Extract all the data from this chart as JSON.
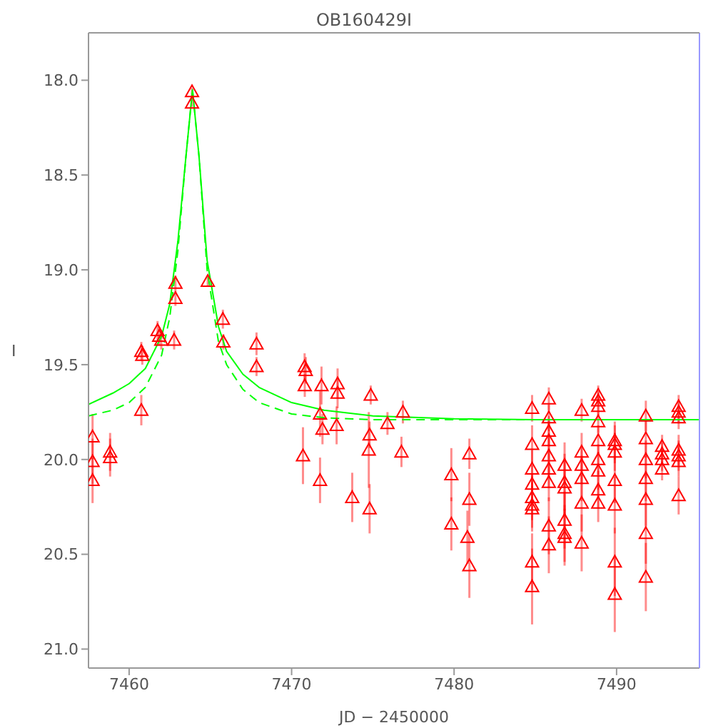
{
  "chart_data": {
    "type": "scatter",
    "title": "OB160429I",
    "xlabel": "JD − 2450000",
    "ylabel": "I",
    "xlim": [
      7457.5,
      7495.1
    ],
    "ylim": [
      21.1,
      17.75
    ],
    "xticks": [
      7460,
      7470,
      7480,
      7490
    ],
    "yticks": [
      {
        "value": 18,
        "label": "18.0"
      },
      {
        "value": 18.5,
        "label": "18.5"
      },
      {
        "value": 19,
        "label": "19.0"
      },
      {
        "value": 19.5,
        "label": "19.5"
      },
      {
        "value": 20,
        "label": "20.0"
      },
      {
        "value": 20.5,
        "label": "20.5"
      },
      {
        "value": 21,
        "label": "21.0"
      }
    ],
    "series": [
      {
        "type": "scatter",
        "color": "#ff0000",
        "marker": "triangle",
        "x": [
          7457.75,
          7457.75,
          7457.75,
          7458.83,
          7458.83,
          7460.75,
          7460.81,
          7460.75,
          7461.75,
          7461.85,
          7461.98,
          7462.77,
          7462.85,
          7462.85,
          7463.87,
          7463.87,
          7464.84,
          7465.77,
          7465.8,
          7467.84,
          7467.84,
          7470.8,
          7470.87,
          7470.81,
          7470.7,
          7471.84,
          7471.75,
          7471.9,
          7471.75,
          7472.83,
          7472.83,
          7472.77,
          7473.73,
          7474.87,
          7474.8,
          7474.75,
          7474.8,
          7475.9,
          7476.85,
          7476.76,
          7479.83,
          7479.83,
          7480.94,
          7480.94,
          7480.82,
          7480.94,
          7484.8,
          7484.8,
          7484.8,
          7484.8,
          7484.8,
          7484.8,
          7484.8,
          7484.8,
          7484.8,
          7485.83,
          7485.83,
          7485.83,
          7485.83,
          7485.83,
          7485.83,
          7485.83,
          7485.83,
          7485.83,
          7486.8,
          7486.8,
          7486.8,
          7486.8,
          7486.8,
          7486.8,
          7487.85,
          7487.85,
          7487.85,
          7487.85,
          7487.85,
          7487.85,
          7488.87,
          7488.87,
          7488.87,
          7488.87,
          7488.87,
          7488.87,
          7488.87,
          7488.87,
          7488.87,
          7489.89,
          7489.89,
          7489.89,
          7489.89,
          7489.89,
          7489.89,
          7489.89,
          7491.8,
          7491.8,
          7491.8,
          7491.8,
          7491.8,
          7491.8,
          7491.8,
          7492.8,
          7492.8,
          7492.8,
          7492.8,
          7493.82,
          7493.82,
          7493.82,
          7493.82,
          7493.82,
          7493.82,
          7493.82
        ],
        "values": [
          19.88,
          20.01,
          20.11,
          19.96,
          19.99,
          19.43,
          19.45,
          19.74,
          19.32,
          19.35,
          19.37,
          19.37,
          19.07,
          19.15,
          18.06,
          18.12,
          19.06,
          19.26,
          19.38,
          19.39,
          19.51,
          19.51,
          19.53,
          19.61,
          19.98,
          19.61,
          19.76,
          19.84,
          20.11,
          19.6,
          19.65,
          19.82,
          20.2,
          19.66,
          19.87,
          19.95,
          20.26,
          19.81,
          19.75,
          19.96,
          20.08,
          20.34,
          19.97,
          20.21,
          20.41,
          20.56,
          19.73,
          19.92,
          20.05,
          20.13,
          20.2,
          20.24,
          20.26,
          20.54,
          20.67,
          19.68,
          19.78,
          19.85,
          19.9,
          19.98,
          20.05,
          20.12,
          20.35,
          20.45,
          20.03,
          20.12,
          20.15,
          20.32,
          20.39,
          20.41,
          19.74,
          19.96,
          20.03,
          20.1,
          20.23,
          20.44,
          19.66,
          19.69,
          19.72,
          19.8,
          19.9,
          20.0,
          20.06,
          20.16,
          20.23,
          19.9,
          19.92,
          19.96,
          20.11,
          20.24,
          20.54,
          20.71,
          19.77,
          19.89,
          20.0,
          20.1,
          20.21,
          20.39,
          20.62,
          19.93,
          19.97,
          20.0,
          20.05,
          19.72,
          19.75,
          19.78,
          19.95,
          19.98,
          20.01,
          20.19
        ],
        "errors": [
          0.12,
          0.12,
          0.12,
          0.1,
          0.1,
          0.05,
          0.05,
          0.08,
          0.05,
          0.05,
          0.05,
          0.05,
          0.04,
          0.04,
          0.02,
          0.02,
          0.03,
          0.05,
          0.04,
          0.06,
          0.05,
          0.07,
          0.07,
          0.06,
          0.15,
          0.1,
          0.12,
          0.08,
          0.12,
          0.08,
          0.08,
          0.1,
          0.13,
          0.05,
          0.07,
          0.2,
          0.13,
          0.06,
          0.06,
          0.08,
          0.14,
          0.14,
          0.08,
          0.14,
          0.14,
          0.17,
          0.07,
          0.1,
          0.1,
          0.1,
          0.12,
          0.12,
          0.12,
          0.15,
          0.2,
          0.06,
          0.07,
          0.08,
          0.1,
          0.1,
          0.1,
          0.1,
          0.15,
          0.15,
          0.12,
          0.15,
          0.15,
          0.15,
          0.15,
          0.15,
          0.06,
          0.1,
          0.1,
          0.12,
          0.15,
          0.15,
          0.05,
          0.05,
          0.05,
          0.06,
          0.08,
          0.08,
          0.1,
          0.1,
          0.1,
          0.1,
          0.1,
          0.1,
          0.12,
          0.15,
          0.18,
          0.2,
          0.08,
          0.1,
          0.1,
          0.12,
          0.14,
          0.16,
          0.18,
          0.06,
          0.06,
          0.06,
          0.06,
          0.06,
          0.06,
          0.06,
          0.08,
          0.08,
          0.08,
          0.1
        ]
      },
      {
        "type": "line",
        "color": "#00ff00",
        "marker": "none",
        "line_style": "solid",
        "x": [
          7457.5,
          7459,
          7460,
          7461,
          7462,
          7462.5,
          7463,
          7463.5,
          7463.9,
          7464.3,
          7464.8,
          7465.5,
          7466,
          7467,
          7468,
          7470,
          7472,
          7475,
          7480,
          7485,
          7495.1
        ],
        "values": [
          19.71,
          19.65,
          19.6,
          19.52,
          19.35,
          19.18,
          18.85,
          18.4,
          18.05,
          18.4,
          18.95,
          19.3,
          19.43,
          19.55,
          19.62,
          19.7,
          19.74,
          19.77,
          19.785,
          19.79,
          19.79
        ]
      },
      {
        "type": "line",
        "color": "#00ff00",
        "marker": "none",
        "line_style": "dashed",
        "x": [
          7457.5,
          7459,
          7460,
          7461,
          7462,
          7462.5,
          7463,
          7463.5,
          7463.9,
          7464.3,
          7464.8,
          7465.5,
          7466,
          7467,
          7468,
          7470,
          7472,
          7475,
          7495.1
        ],
        "values": [
          19.77,
          19.74,
          19.7,
          19.62,
          19.45,
          19.25,
          18.9,
          18.4,
          18.05,
          18.4,
          19.0,
          19.38,
          19.5,
          19.63,
          19.7,
          19.76,
          19.78,
          19.79,
          19.79
        ]
      }
    ]
  }
}
